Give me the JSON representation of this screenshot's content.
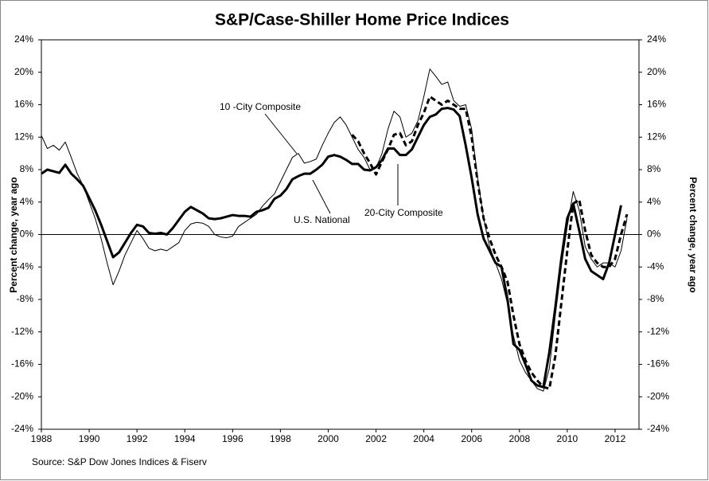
{
  "chart_data": {
    "type": "line",
    "title": "S&P/Case-Shiller Home Price Indices",
    "y_label": "Percent change, year ago",
    "y2_label": "Percent change, year ago",
    "source": "Source: S&P Dow Jones Indices & Fiserv",
    "annotations": [
      "10 -City Composite",
      "U.S. National",
      "20-City Composite"
    ],
    "xlim": [
      1988,
      2013
    ],
    "xticks": [
      1988,
      1990,
      1992,
      1994,
      1996,
      1998,
      2000,
      2002,
      2004,
      2006,
      2008,
      2010,
      2012
    ],
    "ylim": [
      -24,
      24
    ],
    "yticks": [
      {
        "value": -24,
        "label": "-24%"
      },
      {
        "value": -20,
        "label": "-20%"
      },
      {
        "value": -16,
        "label": "-16%"
      },
      {
        "value": -12,
        "label": "-12%"
      },
      {
        "value": -8,
        "label": "-8%"
      },
      {
        "value": -4,
        "label": "-4%"
      },
      {
        "value": 0,
        "label": "0%"
      },
      {
        "value": 4,
        "label": "4%"
      },
      {
        "value": 8,
        "label": "8%"
      },
      {
        "value": 12,
        "label": "12%"
      },
      {
        "value": 16,
        "label": "16%"
      },
      {
        "value": 20,
        "label": "20%"
      },
      {
        "value": 24,
        "label": "24%"
      }
    ],
    "y2lim": [
      -24,
      24
    ],
    "y2ticks": [
      {
        "value": -24,
        "label": "-24%"
      },
      {
        "value": -20,
        "label": "-20%"
      },
      {
        "value": -16,
        "label": "-16%"
      },
      {
        "value": -12,
        "label": "-12%"
      },
      {
        "value": -8,
        "label": "-8%"
      },
      {
        "value": -4,
        "label": "-4%"
      },
      {
        "value": 0,
        "label": "0%"
      },
      {
        "value": 4,
        "label": "4%"
      },
      {
        "value": 8,
        "label": "8%"
      },
      {
        "value": 12,
        "label": "12%"
      },
      {
        "value": 16,
        "label": "16%"
      },
      {
        "value": 20,
        "label": "20%"
      },
      {
        "value": 24,
        "label": "24%"
      }
    ],
    "series": [
      {
        "name": "10 -City Composite",
        "color": "#000000",
        "width": 1,
        "dash": false,
        "x": [
          1988,
          1988.25,
          1988.5,
          1988.75,
          1989,
          1989.25,
          1989.5,
          1989.75,
          1990,
          1990.25,
          1990.5,
          1990.75,
          1991,
          1991.25,
          1991.5,
          1991.75,
          1992,
          1992.25,
          1992.5,
          1992.75,
          1993,
          1993.25,
          1993.5,
          1993.75,
          1994,
          1994.25,
          1994.5,
          1994.75,
          1995,
          1995.25,
          1995.5,
          1995.75,
          1996,
          1996.25,
          1996.5,
          1996.75,
          1997,
          1997.25,
          1997.5,
          1997.75,
          1998,
          1998.25,
          1998.5,
          1998.75,
          1999,
          1999.25,
          1999.5,
          1999.75,
          2000,
          2000.25,
          2000.5,
          2000.75,
          2001,
          2001.25,
          2001.5,
          2001.75,
          2002,
          2002.25,
          2002.5,
          2002.75,
          2003,
          2003.25,
          2003.5,
          2003.75,
          2004,
          2004.25,
          2004.5,
          2004.75,
          2005,
          2005.25,
          2005.5,
          2005.75,
          2006,
          2006.25,
          2006.5,
          2006.75,
          2007,
          2007.25,
          2007.5,
          2007.75,
          2008,
          2008.25,
          2008.5,
          2008.75,
          2009,
          2009.25,
          2009.5,
          2009.75,
          2010,
          2010.25,
          2010.5,
          2010.75,
          2011,
          2011.25,
          2011.5,
          2011.75,
          2012,
          2012.25,
          2012.5
        ],
        "values": [
          12.2,
          10.6,
          11.0,
          10.4,
          11.4,
          9.5,
          7.5,
          6.0,
          4.0,
          2.0,
          -0.5,
          -3.5,
          -6.2,
          -4.5,
          -2.5,
          -1.0,
          0.5,
          -0.5,
          -1.7,
          -2.0,
          -1.8,
          -2.0,
          -1.5,
          -1.0,
          0.5,
          1.3,
          1.5,
          1.4,
          1.0,
          0.0,
          -0.3,
          -0.4,
          -0.2,
          1.0,
          1.5,
          2.0,
          2.5,
          3.5,
          4.3,
          5.0,
          6.5,
          8.0,
          9.5,
          10.0,
          8.8,
          9.0,
          9.3,
          11.0,
          12.5,
          13.8,
          14.5,
          13.5,
          12.0,
          10.5,
          9.5,
          8.0,
          8.2,
          10.0,
          13.0,
          15.2,
          14.5,
          12.0,
          12.5,
          14.0,
          17.0,
          20.4,
          19.5,
          18.5,
          18.8,
          16.5,
          15.8,
          16.0,
          13.0,
          7.0,
          2.0,
          -1.5,
          -3.5,
          -5.5,
          -8.5,
          -12.5,
          -15.5,
          -17.0,
          -18.0,
          -19.0,
          -19.3,
          -16.5,
          -10.0,
          -4.0,
          1.0,
          5.3,
          3.0,
          -1.5,
          -3.0,
          -4.0,
          -3.5,
          -3.5,
          -4.0,
          -2.0,
          2.0
        ]
      },
      {
        "name": "U.S. National",
        "color": "#000000",
        "width": 3,
        "dash": false,
        "x": [
          1988,
          1988.25,
          1988.5,
          1988.75,
          1989,
          1989.25,
          1989.5,
          1989.75,
          1990,
          1990.25,
          1990.5,
          1990.75,
          1991,
          1991.25,
          1991.5,
          1991.75,
          1992,
          1992.25,
          1992.5,
          1992.75,
          1993,
          1993.25,
          1993.5,
          1993.75,
          1994,
          1994.25,
          1994.5,
          1994.75,
          1995,
          1995.25,
          1995.5,
          1995.75,
          1996,
          1996.25,
          1996.5,
          1996.75,
          1997,
          1997.25,
          1997.5,
          1997.75,
          1998,
          1998.25,
          1998.5,
          1998.75,
          1999,
          1999.25,
          1999.5,
          1999.75,
          2000,
          2000.25,
          2000.5,
          2000.75,
          2001,
          2001.25,
          2001.5,
          2001.75,
          2002,
          2002.25,
          2002.5,
          2002.75,
          2003,
          2003.25,
          2003.5,
          2003.75,
          2004,
          2004.25,
          2004.5,
          2004.75,
          2005,
          2005.25,
          2005.5,
          2005.75,
          2006,
          2006.25,
          2006.5,
          2006.75,
          2007,
          2007.25,
          2007.5,
          2007.75,
          2008,
          2008.25,
          2008.5,
          2008.75,
          2009,
          2009.25,
          2009.5,
          2009.75,
          2010,
          2010.25,
          2010.5,
          2010.75,
          2011,
          2011.25,
          2011.5,
          2011.75,
          2012,
          2012.25
        ],
        "values": [
          7.5,
          8.0,
          7.8,
          7.6,
          8.6,
          7.5,
          6.8,
          6.0,
          4.5,
          3.0,
          1.2,
          -0.8,
          -2.8,
          -2.2,
          -1.0,
          0.2,
          1.2,
          1.0,
          0.2,
          0.1,
          0.2,
          0.0,
          0.8,
          1.8,
          2.8,
          3.4,
          3.0,
          2.6,
          2.0,
          1.9,
          2.0,
          2.2,
          2.4,
          2.3,
          2.3,
          2.2,
          2.8,
          3.0,
          3.3,
          4.4,
          4.8,
          5.6,
          6.8,
          7.2,
          7.5,
          7.5,
          8.0,
          8.6,
          9.6,
          9.8,
          9.6,
          9.2,
          8.7,
          8.7,
          8.0,
          7.9,
          8.3,
          9.2,
          10.6,
          10.6,
          9.8,
          9.8,
          10.5,
          12.0,
          13.5,
          14.5,
          14.8,
          15.5,
          15.6,
          15.4,
          14.6,
          11,
          7,
          2.5,
          -0.5,
          -2,
          -3.5,
          -4,
          -8,
          -13.5,
          -14.2,
          -16,
          -18,
          -18.6,
          -18.8,
          -14.5,
          -9,
          -3,
          2,
          3.8,
          0.5,
          -3,
          -4.5,
          -5,
          -5.5,
          -3.5,
          0,
          3.6
        ]
      },
      {
        "name": "20-City Composite",
        "color": "#000000",
        "width": 3,
        "dash": true,
        "x": [
          2001,
          2001.25,
          2001.5,
          2001.75,
          2002,
          2002.25,
          2002.5,
          2002.75,
          2003,
          2003.25,
          2003.5,
          2003.75,
          2004,
          2004.25,
          2004.5,
          2004.75,
          2005,
          2005.25,
          2005.5,
          2005.75,
          2006,
          2006.25,
          2006.5,
          2006.75,
          2007,
          2007.25,
          2007.5,
          2007.75,
          2008,
          2008.25,
          2008.5,
          2008.75,
          2009,
          2009.25,
          2009.5,
          2009.75,
          2010,
          2010.25,
          2010.5,
          2010.75,
          2011,
          2011.25,
          2011.5,
          2011.75,
          2012,
          2012.25,
          2012.5
        ],
        "values": [
          12.3,
          11.5,
          10.0,
          8.8,
          7.4,
          9.0,
          10.5,
          12.3,
          12.5,
          11.0,
          11.5,
          13.5,
          15.0,
          17.0,
          16.5,
          16.0,
          16.5,
          16.0,
          15.5,
          15.5,
          12.0,
          6.5,
          2.0,
          -0.5,
          -2.5,
          -4.0,
          -5.8,
          -10.0,
          -13.5,
          -15.5,
          -17.0,
          -18.0,
          -18.8,
          -19.0,
          -15.0,
          -8.5,
          -2.0,
          3.8,
          4.3,
          0.5,
          -2.5,
          -3.5,
          -4.0,
          -4.0,
          -3.0,
          0.0,
          2.5
        ]
      }
    ]
  }
}
